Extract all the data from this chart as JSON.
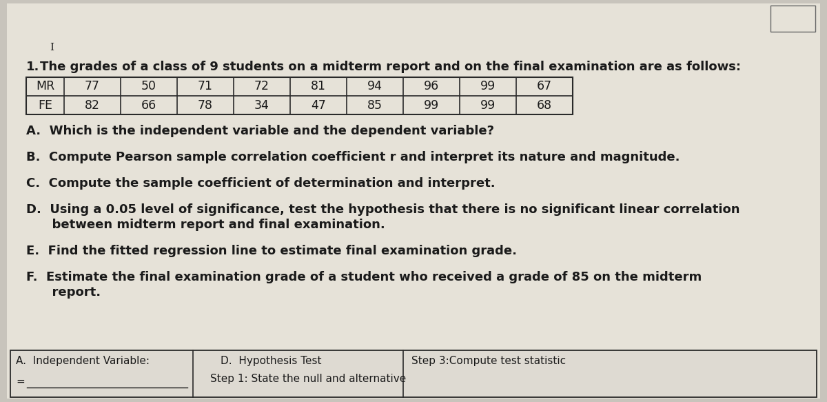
{
  "title_number": "1.",
  "title_text": "  The grades of a class of 9 students on a midterm report and on the final examination are as follows:",
  "table_row1": [
    "MR",
    "77",
    "50",
    "71",
    "72",
    "81",
    "94",
    "96",
    "99",
    "67"
  ],
  "table_row2": [
    "FE",
    "82",
    "66",
    "78",
    "34",
    "47",
    "85",
    "99",
    "99",
    "68"
  ],
  "q_A": "A.  Which is the independent variable and the dependent variable?",
  "q_B": "B.  Compute Pearson sample correlation coefficient r and interpret its nature and magnitude.",
  "q_C": "C.  Compute the sample coefficient of determination and interpret.",
  "q_D1": "D.  Using a 0.05 level of significance, test the hypothesis that there is no significant linear correlation",
  "q_D2": "      between midterm report and final examination.",
  "q_E": "E.  Find the fitted regression line to estimate final examination grade.",
  "q_F1": "F.  Estimate the final examination grade of a student who received a grade of 85 on the midterm",
  "q_F2": "      report.",
  "cursor_char": "I",
  "bottom_cell1_line1": "A.  Independent Variable:",
  "bottom_cell1_line2": "=",
  "bottom_cell2_line1": "D.  Hypothesis Test",
  "bottom_cell2_line2": "Step 1: State the null and alternative",
  "bottom_cell3_line1": "Step 3:Compute test statistic",
  "bg_color": "#c8c4bc",
  "paper_color": "#e6e2d8",
  "text_color": "#1a1a1a",
  "table_border_color": "#2a2a2a",
  "bottom_box_bg": "#dedad2"
}
